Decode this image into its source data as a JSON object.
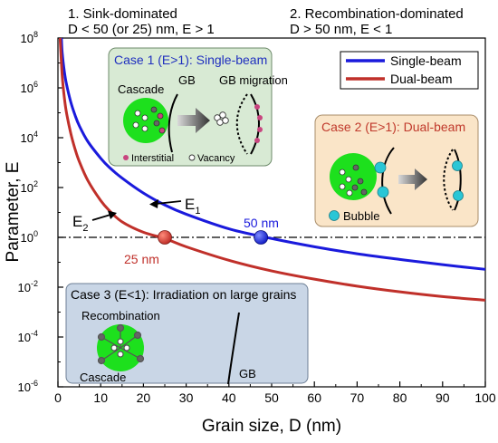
{
  "colors": {
    "single_beam": "#1a1adc",
    "dual_beam": "#c0302a",
    "case1_title": "#1f2fbf",
    "case2_title": "#c0392b",
    "case1_box_fill": "#d8ead4",
    "case2_box_fill": "#fae5c8",
    "case3_box_fill": "#c9d6e6",
    "cascade_green": "#1de01d",
    "interstitial": "#c8457f",
    "bubble": "#29c6d6"
  },
  "header": {
    "left_line1": "1. Sink-dominated",
    "left_line2": "D < 50 (or 25) nm, E > 1",
    "right_line1": "2. Recombination-dominated",
    "right_line2": "D > 50 nm, E < 1"
  },
  "legend": {
    "entries": [
      {
        "label": "Single-beam",
        "series": 0
      },
      {
        "label": "Dual-beam",
        "series": 1
      }
    ]
  },
  "annotations": {
    "e1_main": "E",
    "e1_sub": "1",
    "e2_main": "E",
    "e2_sub": "2",
    "crossing_single": "50 nm",
    "crossing_dual": "25 nm"
  },
  "case1": {
    "title": "Case 1 (E>1): Single-beam",
    "gb": "GB",
    "cascade": "Cascade",
    "gb_migration": "GB migration",
    "interstitial": "Interstitial",
    "vacancy": "Vacancy"
  },
  "case2": {
    "title": "Case 2 (E>1): Dual-beam",
    "bubble": "Bubble"
  },
  "case3": {
    "title": "Case 3 (E<1): Irradiation on large grains",
    "recombination": "Recombination",
    "cascade": "Cascade",
    "gb": "GB"
  },
  "chart_data": {
    "type": "line",
    "xlabel": "Grain size, D (nm)",
    "ylabel": "Parameter, E",
    "xlim": [
      0,
      100
    ],
    "ylim": [
      1e-06,
      100000000.0
    ],
    "y_scale": "log",
    "x_ticks": [
      0,
      10,
      20,
      30,
      40,
      50,
      60,
      70,
      80,
      90,
      100
    ],
    "x_tick_labels": [
      "0",
      "10",
      "20",
      "30",
      "40",
      "50",
      "60",
      "70",
      "80",
      "90",
      "100"
    ],
    "y_ticks": [
      1e-06,
      0.0001,
      0.01,
      1.0,
      100.0,
      10000.0,
      1000000.0,
      100000000.0
    ],
    "y_tick_mantissa": "10",
    "y_tick_exponents": [
      "-6",
      "-4",
      "-2",
      "0",
      "2",
      "4",
      "6",
      "8"
    ],
    "legend_position": "top-right",
    "reference_line": {
      "y": 1,
      "style": "dash-dot"
    },
    "series": [
      {
        "name": "Single-beam",
        "x": [
          0.8,
          1,
          1.5,
          2,
          3,
          4,
          5,
          7,
          10,
          12,
          15,
          20,
          25,
          30,
          40,
          50,
          60,
          70,
          80,
          90,
          100
        ],
        "y": [
          100000000.0,
          25000000.0,
          4500000.0,
          1400000.0,
          270000.0,
          80000.0,
          30000.0,
          7000,
          1500,
          650,
          240,
          60,
          20,
          8.5,
          2.2,
          0.9,
          0.42,
          0.22,
          0.13,
          0.08,
          0.052
        ]
      },
      {
        "name": "Dual-beam",
        "x": [
          0.5,
          1,
          1.5,
          2,
          3,
          4,
          5,
          7,
          10,
          12,
          15,
          20,
          25,
          30,
          40,
          50,
          60,
          70,
          80,
          90,
          100
        ],
        "y": [
          100000000.0,
          3000000.0,
          400000.0,
          100000.0,
          15000.0,
          3500,
          1100,
          190,
          30,
          12,
          4.2,
          1.6,
          0.9,
          0.42,
          0.12,
          0.045,
          0.021,
          0.011,
          0.0065,
          0.0042,
          0.003
        ]
      }
    ],
    "markers": [
      {
        "series": 0,
        "x": 47.5,
        "y": 1,
        "label": "50 nm"
      },
      {
        "series": 1,
        "x": 25,
        "y": 1,
        "label": "25 nm"
      }
    ]
  }
}
